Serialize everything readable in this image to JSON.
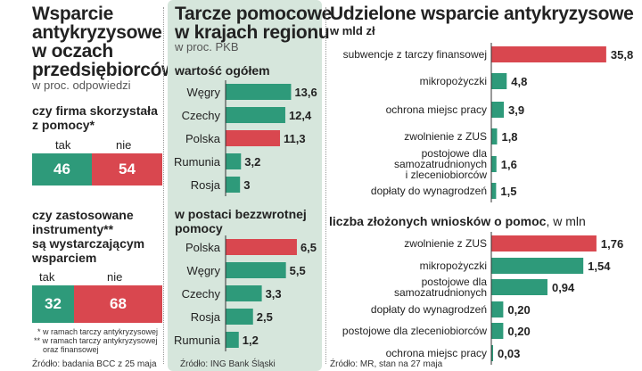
{
  "left": {
    "title": "Wsparcie antykryzysowe w oczach przedsiębiorców",
    "title_lines": [
      "Wsparcie",
      "antykryzysowe",
      "w oczach",
      "przedsiębiorców"
    ],
    "subtitle": "w proc. odpowiedzi",
    "q1": {
      "lines": [
        "czy firma skorzystała",
        "z pomocy*"
      ],
      "yes_label": "tak",
      "no_label": "nie",
      "yes_value": 46,
      "no_value": 54
    },
    "q2": {
      "lines": [
        "czy zastosowane",
        "instrumenty**",
        "są wystarczającym",
        "wsparciem"
      ],
      "yes_label": "tak",
      "no_label": "nie",
      "yes_value": 32,
      "no_value": 68
    },
    "footnote1": "* w ramach tarczy antykryzysowej",
    "footnote2a": "** w ramach tarczy antykryzysowej",
    "footnote2b": "oraz finansowej",
    "source": "Źródło: badania BCC z 25 maja"
  },
  "middle": {
    "title_lines": [
      "Tarcze pomocowe",
      "w krajach regionu"
    ],
    "subtitle": "w proc. PKB"
  },
  "right": {
    "title": "Udzielone wsparcie antykryzysowe",
    "source": "Źródło: MR, stan na 27 maja"
  },
  "colors": {
    "green": "#2e9a7a",
    "red": "#d9474f",
    "panel": "#d6e6dc"
  },
  "chart_data": [
    {
      "type": "bar",
      "title": "wartość ogółem",
      "categories": [
        "Węgry",
        "Czechy",
        "Polska",
        "Rumunia",
        "Rosja"
      ],
      "values": [
        13.6,
        12.4,
        11.3,
        3.2,
        3
      ],
      "labels": [
        "13,6",
        "12,4",
        "11,3",
        "3,2",
        "3"
      ],
      "highlight": "Polska"
    },
    {
      "type": "bar",
      "title_lines": [
        "w postaci bezzwrotnej",
        "pomocy"
      ],
      "categories": [
        "Polska",
        "Węgry",
        "Czechy",
        "Rosja",
        "Rumunia"
      ],
      "values": [
        6.5,
        5.5,
        3.3,
        2.5,
        1.2
      ],
      "labels": [
        "6,5",
        "5,5",
        "3,3",
        "2,5",
        "1,2"
      ],
      "highlight": "Polska"
    },
    {
      "type": "bar",
      "title": "w mld zł",
      "categories": [
        [
          "subwencje z tarczy finansowej"
        ],
        [
          "mikropożyczki"
        ],
        [
          "ochrona miejsc pracy"
        ],
        [
          "zwolnienie z ZUS"
        ],
        [
          "postojowe dla",
          "samozatrudnionych",
          "i zleceniobiorców"
        ],
        [
          "dopłaty do wynagrodzeń"
        ]
      ],
      "values": [
        35.8,
        4.8,
        3.9,
        1.8,
        1.6,
        1.5
      ],
      "labels": [
        "35,8",
        "4,8",
        "3,9",
        "1,8",
        "1,6",
        "1,5"
      ],
      "highlight_index": 0
    },
    {
      "type": "bar",
      "title": "liczba złożonych wniosków o pomoc",
      "title_unit": ", w mln",
      "categories": [
        [
          "zwolnienie z ZUS"
        ],
        [
          "mikropożyczki"
        ],
        [
          "postojowe dla",
          "samozatrudnionych"
        ],
        [
          "dopłaty do wynagrodzeń"
        ],
        [
          "postojowe dla zleceniobiorców"
        ],
        [
          "ochrona miejsc pracy"
        ]
      ],
      "values": [
        1.76,
        1.54,
        0.94,
        0.2,
        0.2,
        0.03
      ],
      "labels": [
        "1,76",
        "1,54",
        "0,94",
        "0,20",
        "0,20",
        "0,03"
      ],
      "highlight_index": 0
    }
  ]
}
